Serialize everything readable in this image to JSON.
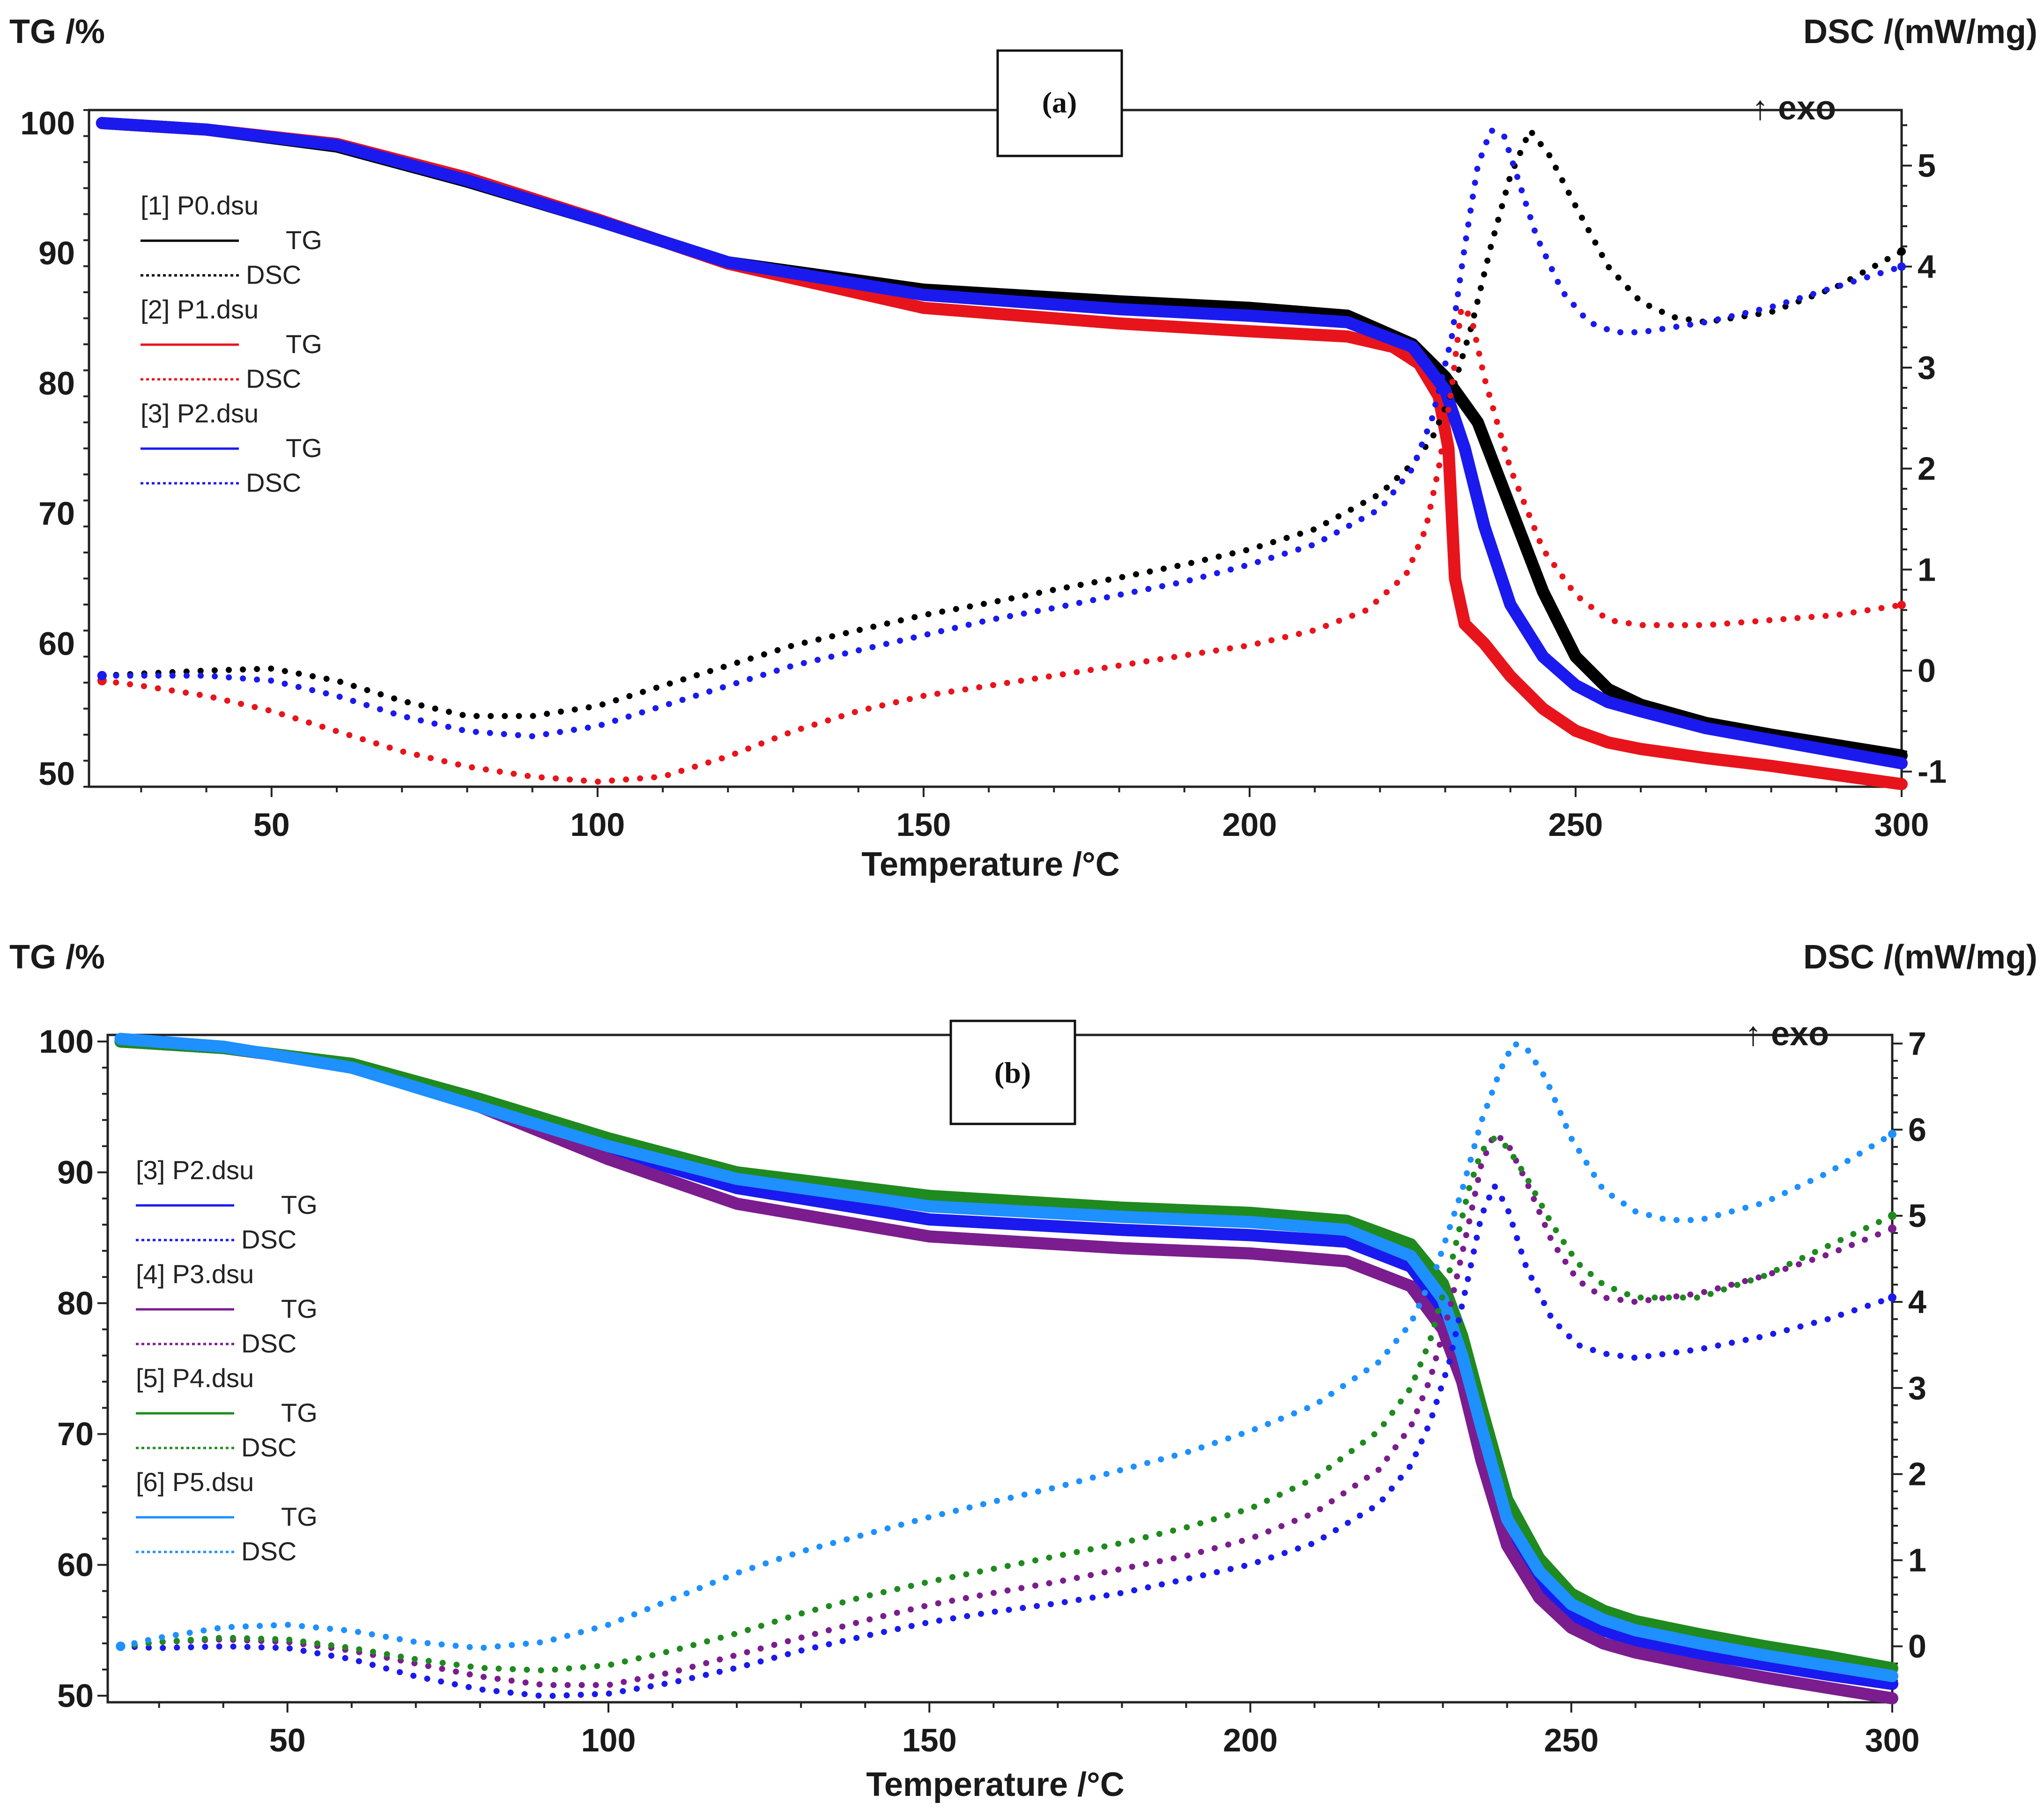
{
  "chart_data": [
    {
      "type": "line",
      "panel_label": "(a)",
      "exo_label": "↑ exo",
      "xlabel": "Temperature /°C",
      "ylabel_left": "TG /%",
      "ylabel_right": "DSC /(mW/mg)",
      "xlim": [
        22,
        300
      ],
      "ylim_left": [
        49,
        101
      ],
      "ylim_right": [
        -1.15,
        5.55
      ],
      "x_ticks": [
        50,
        100,
        150,
        200,
        250,
        300
      ],
      "y_left_ticks": [
        50,
        60,
        70,
        80,
        90,
        100
      ],
      "y_right_ticks": [
        -1,
        0,
        1,
        2,
        3,
        4,
        5
      ],
      "grid": false,
      "legend_position": "top-left",
      "legend": [
        {
          "file": "[1] P0.dsu",
          "tg": "TG",
          "dsc": "DSC",
          "color": "#000000"
        },
        {
          "file": "[2] P1.dsu",
          "tg": "TG",
          "dsc": "DSC",
          "color": "#e8141c"
        },
        {
          "file": "[3] P2.dsu",
          "tg": "TG",
          "dsc": "DSC",
          "color": "#1a1aee"
        }
      ],
      "series": [
        {
          "name": "[1] P0.dsu",
          "kind": "TG",
          "color": "#000000",
          "x": [
            24,
            40,
            60,
            80,
            100,
            120,
            150,
            180,
            200,
            215,
            225,
            230,
            235,
            240,
            245,
            250,
            255,
            260,
            270,
            280,
            290,
            300
          ],
          "y": [
            100,
            99.5,
            98.2,
            95.5,
            92.5,
            89.3,
            87.2,
            86.3,
            85.8,
            85.2,
            83,
            80.5,
            77,
            70.5,
            64,
            59,
            56.5,
            55.3,
            53.9,
            53,
            52.2,
            51.4
          ]
        },
        {
          "name": "[2] P1.dsu",
          "kind": "TG",
          "color": "#e8141c",
          "x": [
            24,
            40,
            60,
            80,
            100,
            120,
            150,
            180,
            200,
            215,
            222,
            226,
            229,
            230.5,
            231.5,
            233,
            236,
            240,
            245,
            250,
            255,
            260,
            270,
            280,
            290,
            300
          ],
          "y": [
            100,
            99.5,
            98.4,
            95.8,
            92.6,
            89.2,
            85.8,
            84.6,
            84,
            83.6,
            82.8,
            81.5,
            79,
            75,
            65,
            61.5,
            60,
            57.5,
            55,
            53.3,
            52.4,
            51.9,
            51.2,
            50.6,
            49.9,
            49.2
          ]
        },
        {
          "name": "[3] P2.dsu",
          "kind": "TG",
          "color": "#1a1aee",
          "x": [
            24,
            40,
            60,
            80,
            100,
            120,
            150,
            180,
            200,
            215,
            225,
            230,
            233,
            236,
            238,
            240,
            245,
            250,
            255,
            260,
            270,
            280,
            290,
            300
          ],
          "y": [
            100,
            99.5,
            98.3,
            95.6,
            92.5,
            89.3,
            86.8,
            85.7,
            85.2,
            84.7,
            82.8,
            79.5,
            75,
            69,
            66,
            63,
            59,
            56.8,
            55.5,
            54.8,
            53.5,
            52.6,
            51.7,
            50.8
          ]
        },
        {
          "name": "[1] P0.dsu",
          "kind": "DSC",
          "color": "#000000",
          "x": [
            24,
            30,
            40,
            50,
            60,
            70,
            80,
            90,
            100,
            110,
            120,
            130,
            140,
            150,
            160,
            170,
            180,
            190,
            200,
            210,
            220,
            225,
            228,
            231,
            234,
            237,
            240,
            243,
            246,
            250,
            255,
            260,
            265,
            270,
            280,
            290,
            300
          ],
          "y": [
            -0.05,
            -0.03,
            0.0,
            0.02,
            -0.1,
            -0.3,
            -0.45,
            -0.45,
            -0.35,
            -0.15,
            0.05,
            0.25,
            0.4,
            0.55,
            0.67,
            0.8,
            0.92,
            1.05,
            1.2,
            1.4,
            1.75,
            2.05,
            2.3,
            2.75,
            3.4,
            4.2,
            4.9,
            5.35,
            5.1,
            4.6,
            4.0,
            3.65,
            3.5,
            3.45,
            3.55,
            3.8,
            4.15
          ]
        },
        {
          "name": "[2] P1.dsu",
          "kind": "DSC",
          "color": "#e8141c",
          "x": [
            24,
            30,
            40,
            50,
            60,
            70,
            80,
            90,
            100,
            110,
            120,
            130,
            140,
            150,
            160,
            170,
            180,
            190,
            200,
            210,
            218,
            224,
            227,
            229,
            231,
            232.5,
            234,
            236,
            240,
            245,
            250,
            255,
            260,
            270,
            280,
            290,
            300
          ],
          "y": [
            -0.1,
            -0.15,
            -0.25,
            -0.4,
            -0.6,
            -0.8,
            -0.95,
            -1.05,
            -1.1,
            -1.05,
            -0.85,
            -0.6,
            -0.4,
            -0.25,
            -0.15,
            -0.05,
            0.05,
            0.15,
            0.25,
            0.4,
            0.6,
            0.95,
            1.4,
            2.0,
            2.8,
            3.6,
            3.5,
            2.9,
            2.0,
            1.2,
            0.75,
            0.5,
            0.45,
            0.45,
            0.5,
            0.55,
            0.65
          ]
        },
        {
          "name": "[3] P2.dsu",
          "kind": "DSC",
          "color": "#1a1aee",
          "x": [
            24,
            30,
            40,
            50,
            60,
            70,
            80,
            90,
            100,
            110,
            120,
            130,
            140,
            150,
            160,
            170,
            180,
            190,
            200,
            210,
            220,
            225,
            228,
            231,
            233,
            235,
            237,
            239,
            241,
            244,
            248,
            252,
            256,
            260,
            270,
            280,
            290,
            300
          ],
          "y": [
            -0.05,
            -0.05,
            -0.05,
            -0.1,
            -0.25,
            -0.45,
            -0.6,
            -0.65,
            -0.55,
            -0.35,
            -0.15,
            0.05,
            0.2,
            0.35,
            0.5,
            0.62,
            0.75,
            0.88,
            1.05,
            1.25,
            1.6,
            2.0,
            2.5,
            3.3,
            4.2,
            5.0,
            5.35,
            5.3,
            4.9,
            4.3,
            3.75,
            3.45,
            3.35,
            3.35,
            3.45,
            3.6,
            3.8,
            4.0
          ]
        }
      ]
    },
    {
      "type": "line",
      "panel_label": "(b)",
      "exo_label": "↑ exo",
      "xlabel": "Temperature /°C",
      "ylabel_left": "TG /%",
      "ylabel_right": "DSC /(mW/mg)",
      "xlim": [
        22,
        300
      ],
      "ylim_left": [
        49.5,
        100.5
      ],
      "ylim_right": [
        -0.65,
        7.1
      ],
      "x_ticks": [
        50,
        100,
        150,
        200,
        250,
        300
      ],
      "y_left_ticks": [
        50,
        60,
        70,
        80,
        90,
        100
      ],
      "y_right_ticks": [
        0,
        1,
        2,
        3,
        4,
        5,
        6,
        7
      ],
      "grid": false,
      "legend_position": "middle-left",
      "legend": [
        {
          "file": "[3] P2.dsu",
          "tg": "TG",
          "dsc": "DSC",
          "color": "#1a1aee"
        },
        {
          "file": "[4] P3.dsu",
          "tg": "TG",
          "dsc": "DSC",
          "color": "#7b1d8e"
        },
        {
          "file": "[5] P4.dsu",
          "tg": "TG",
          "dsc": "DSC",
          "color": "#1f8a1f"
        },
        {
          "file": "[6] P5.dsu",
          "tg": "TG",
          "dsc": "DSC",
          "color": "#1e90ff"
        }
      ],
      "series": [
        {
          "name": "[3] P2.dsu",
          "kind": "TG",
          "color": "#1a1aee",
          "x": [
            24,
            40,
            60,
            80,
            100,
            120,
            150,
            180,
            200,
            215,
            225,
            230,
            233,
            236,
            240,
            245,
            250,
            255,
            260,
            270,
            280,
            290,
            300
          ],
          "y": [
            100,
            99.5,
            98.2,
            95.3,
            91.8,
            88.8,
            86.4,
            85.6,
            85.2,
            84.7,
            82.8,
            79.5,
            75,
            69,
            62.5,
            58.5,
            56.2,
            55,
            54.2,
            53.2,
            52.4,
            51.6,
            50.9
          ]
        },
        {
          "name": "[4] P3.dsu",
          "kind": "TG",
          "color": "#7b1d8e",
          "x": [
            24,
            40,
            60,
            80,
            100,
            120,
            150,
            180,
            200,
            215,
            225,
            230,
            233,
            236,
            240,
            245,
            250,
            255,
            260,
            270,
            280,
            290,
            300
          ],
          "y": [
            100,
            99.5,
            98.2,
            95,
            91,
            87.6,
            85.1,
            84.2,
            83.8,
            83.2,
            81.3,
            78,
            74,
            68,
            61.5,
            57.5,
            55.2,
            54,
            53.3,
            52.3,
            51.4,
            50.6,
            49.8
          ]
        },
        {
          "name": "[5] P4.dsu",
          "kind": "TG",
          "color": "#1f8a1f",
          "x": [
            24,
            40,
            60,
            80,
            100,
            120,
            150,
            180,
            200,
            215,
            225,
            230,
            233,
            236,
            240,
            245,
            250,
            255,
            260,
            270,
            280,
            290,
            300
          ],
          "y": [
            100,
            99.5,
            98.3,
            95.6,
            92.6,
            90,
            88.2,
            87.3,
            86.9,
            86.3,
            84.5,
            81.5,
            77.5,
            72,
            65,
            60.5,
            57.8,
            56.5,
            55.7,
            54.7,
            53.8,
            53,
            52.1
          ]
        },
        {
          "name": "[6] P5.dsu",
          "kind": "TG",
          "color": "#1e90ff",
          "x": [
            24,
            40,
            60,
            80,
            100,
            120,
            150,
            180,
            200,
            215,
            225,
            230,
            233,
            236,
            240,
            245,
            250,
            255,
            260,
            270,
            280,
            290,
            300
          ],
          "y": [
            100.2,
            99.6,
            98,
            95,
            92,
            89.5,
            87.4,
            86.6,
            86.2,
            85.6,
            83.6,
            80.3,
            76,
            70.5,
            63.5,
            59.5,
            57,
            55.8,
            55,
            54,
            53.1,
            52.3,
            51.5
          ]
        },
        {
          "name": "[3] P2.dsu",
          "kind": "DSC",
          "color": "#1a1aee",
          "x": [
            24,
            30,
            40,
            50,
            60,
            70,
            80,
            90,
            100,
            110,
            120,
            130,
            140,
            150,
            160,
            170,
            180,
            190,
            200,
            210,
            220,
            225,
            228,
            231,
            234,
            236,
            238,
            240,
            243,
            247,
            251,
            255,
            260,
            270,
            280,
            290,
            300
          ],
          "y": [
            0,
            -0.02,
            0,
            -0.02,
            -0.15,
            -0.35,
            -0.5,
            -0.58,
            -0.55,
            -0.42,
            -0.25,
            -0.05,
            0.12,
            0.28,
            0.4,
            0.5,
            0.62,
            0.78,
            0.95,
            1.2,
            1.65,
            2.1,
            2.6,
            3.3,
            4.3,
            5.0,
            5.35,
            5.1,
            4.4,
            3.8,
            3.5,
            3.4,
            3.35,
            3.45,
            3.6,
            3.8,
            4.05
          ]
        },
        {
          "name": "[4] P3.dsu",
          "kind": "DSC",
          "color": "#7b1d8e",
          "x": [
            24,
            30,
            40,
            50,
            60,
            70,
            80,
            90,
            100,
            110,
            120,
            130,
            140,
            150,
            160,
            170,
            180,
            190,
            200,
            210,
            220,
            225,
            228,
            231,
            234,
            236,
            238,
            240,
            243,
            247,
            251,
            255,
            260,
            270,
            280,
            290,
            300
          ],
          "y": [
            0,
            0.05,
            0.08,
            0.05,
            -0.05,
            -0.2,
            -0.35,
            -0.45,
            -0.45,
            -0.3,
            -0.1,
            0.1,
            0.3,
            0.48,
            0.62,
            0.75,
            0.9,
            1.05,
            1.25,
            1.55,
            2.05,
            2.55,
            3.1,
            3.9,
            4.9,
            5.6,
            5.95,
            5.85,
            5.4,
            4.7,
            4.25,
            4.05,
            4.0,
            4.1,
            4.3,
            4.55,
            4.85
          ]
        },
        {
          "name": "[5] P4.dsu",
          "kind": "DSC",
          "color": "#1f8a1f",
          "x": [
            24,
            30,
            40,
            50,
            60,
            70,
            80,
            90,
            100,
            110,
            120,
            130,
            140,
            150,
            160,
            170,
            180,
            190,
            200,
            210,
            220,
            225,
            228,
            231,
            234,
            236,
            238,
            240,
            243,
            247,
            251,
            255,
            260,
            270,
            280,
            290,
            300
          ],
          "y": [
            0,
            0.05,
            0.1,
            0.08,
            -0.02,
            -0.15,
            -0.25,
            -0.28,
            -0.22,
            -0.05,
            0.15,
            0.38,
            0.58,
            0.75,
            0.9,
            1.05,
            1.2,
            1.38,
            1.6,
            1.95,
            2.5,
            3.0,
            3.55,
            4.35,
            5.3,
            5.75,
            5.9,
            5.8,
            5.45,
            4.9,
            4.45,
            4.2,
            4.05,
            4.05,
            4.3,
            4.65,
            5.0
          ]
        },
        {
          "name": "[6] P5.dsu",
          "kind": "DSC",
          "color": "#1e90ff",
          "x": [
            24,
            30,
            40,
            50,
            60,
            70,
            80,
            90,
            100,
            110,
            120,
            130,
            140,
            150,
            160,
            170,
            180,
            190,
            200,
            210,
            220,
            225,
            229,
            233,
            236,
            239,
            241,
            243,
            246,
            250,
            255,
            260,
            265,
            270,
            280,
            290,
            300
          ],
          "y": [
            0,
            0.1,
            0.22,
            0.25,
            0.18,
            0.05,
            -0.02,
            0.05,
            0.25,
            0.55,
            0.85,
            1.1,
            1.3,
            1.5,
            1.68,
            1.85,
            2.05,
            2.25,
            2.5,
            2.8,
            3.3,
            3.75,
            4.4,
            5.3,
            6.1,
            6.7,
            7.0,
            6.95,
            6.6,
            5.9,
            5.3,
            5.05,
            4.95,
            4.95,
            5.15,
            5.5,
            5.95
          ]
        }
      ]
    }
  ]
}
